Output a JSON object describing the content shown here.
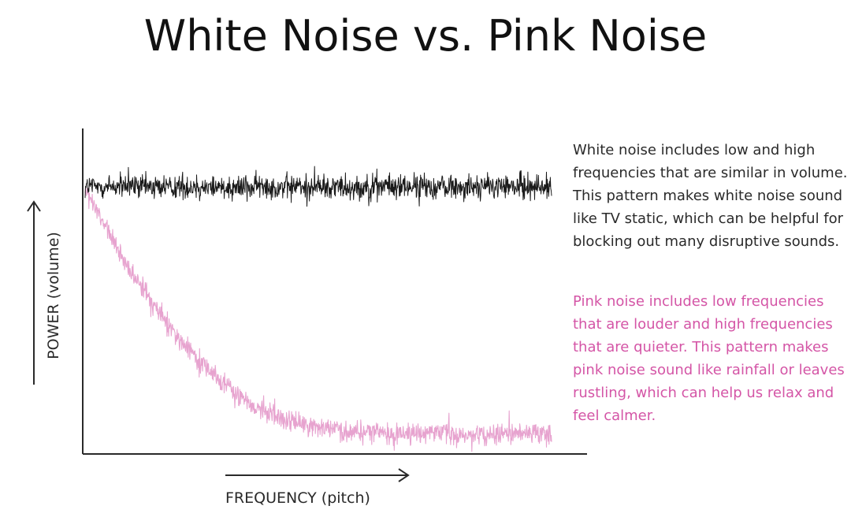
{
  "title": "White Noise vs. Pink Noise",
  "descriptions": {
    "white": "White noise includes low and high frequencies that are similar in volume. This pattern makes white noise sound like TV static, which can be helpful for blocking out many disruptive sounds.",
    "pink": "Pink noise includes low frequencies that are louder and high frequencies that are quieter. This pattern makes pink noise sound like rainfall or leaves rustling, which can help us relax and feel calmer."
  },
  "colors": {
    "white_noise": "#1a1a1a",
    "pink_noise": "#e7a3cf",
    "pink_text": "#d455a6",
    "axis": "#2a2a2a"
  },
  "chart_data": {
    "type": "line",
    "title": "White Noise vs. Pink Noise",
    "xlabel": "FREQUENCY (pitch)",
    "ylabel": "POWER (volume)",
    "grid": false,
    "legend": "none",
    "axis_ticks": "none",
    "xlim": [
      0,
      1
    ],
    "ylim": [
      0,
      1
    ],
    "series": [
      {
        "key": "white",
        "color": "#1a1a1a",
        "trend": {
          "x": [
            0.0,
            0.25,
            0.5,
            0.75,
            1.0
          ],
          "y": [
            0.85,
            0.85,
            0.85,
            0.85,
            0.85
          ]
        },
        "noise_amplitude": 0.06
      },
      {
        "key": "pink",
        "color": "#e7a3cf",
        "trend": {
          "x": [
            0.0,
            0.05,
            0.1,
            0.15,
            0.2,
            0.25,
            0.3,
            0.35,
            0.4,
            0.5,
            0.6,
            0.7,
            0.8,
            0.9,
            1.0
          ],
          "y": [
            0.84,
            0.7,
            0.57,
            0.46,
            0.36,
            0.28,
            0.21,
            0.15,
            0.11,
            0.07,
            0.055,
            0.05,
            0.05,
            0.05,
            0.05
          ]
        },
        "noise_amplitude": 0.05
      }
    ]
  }
}
